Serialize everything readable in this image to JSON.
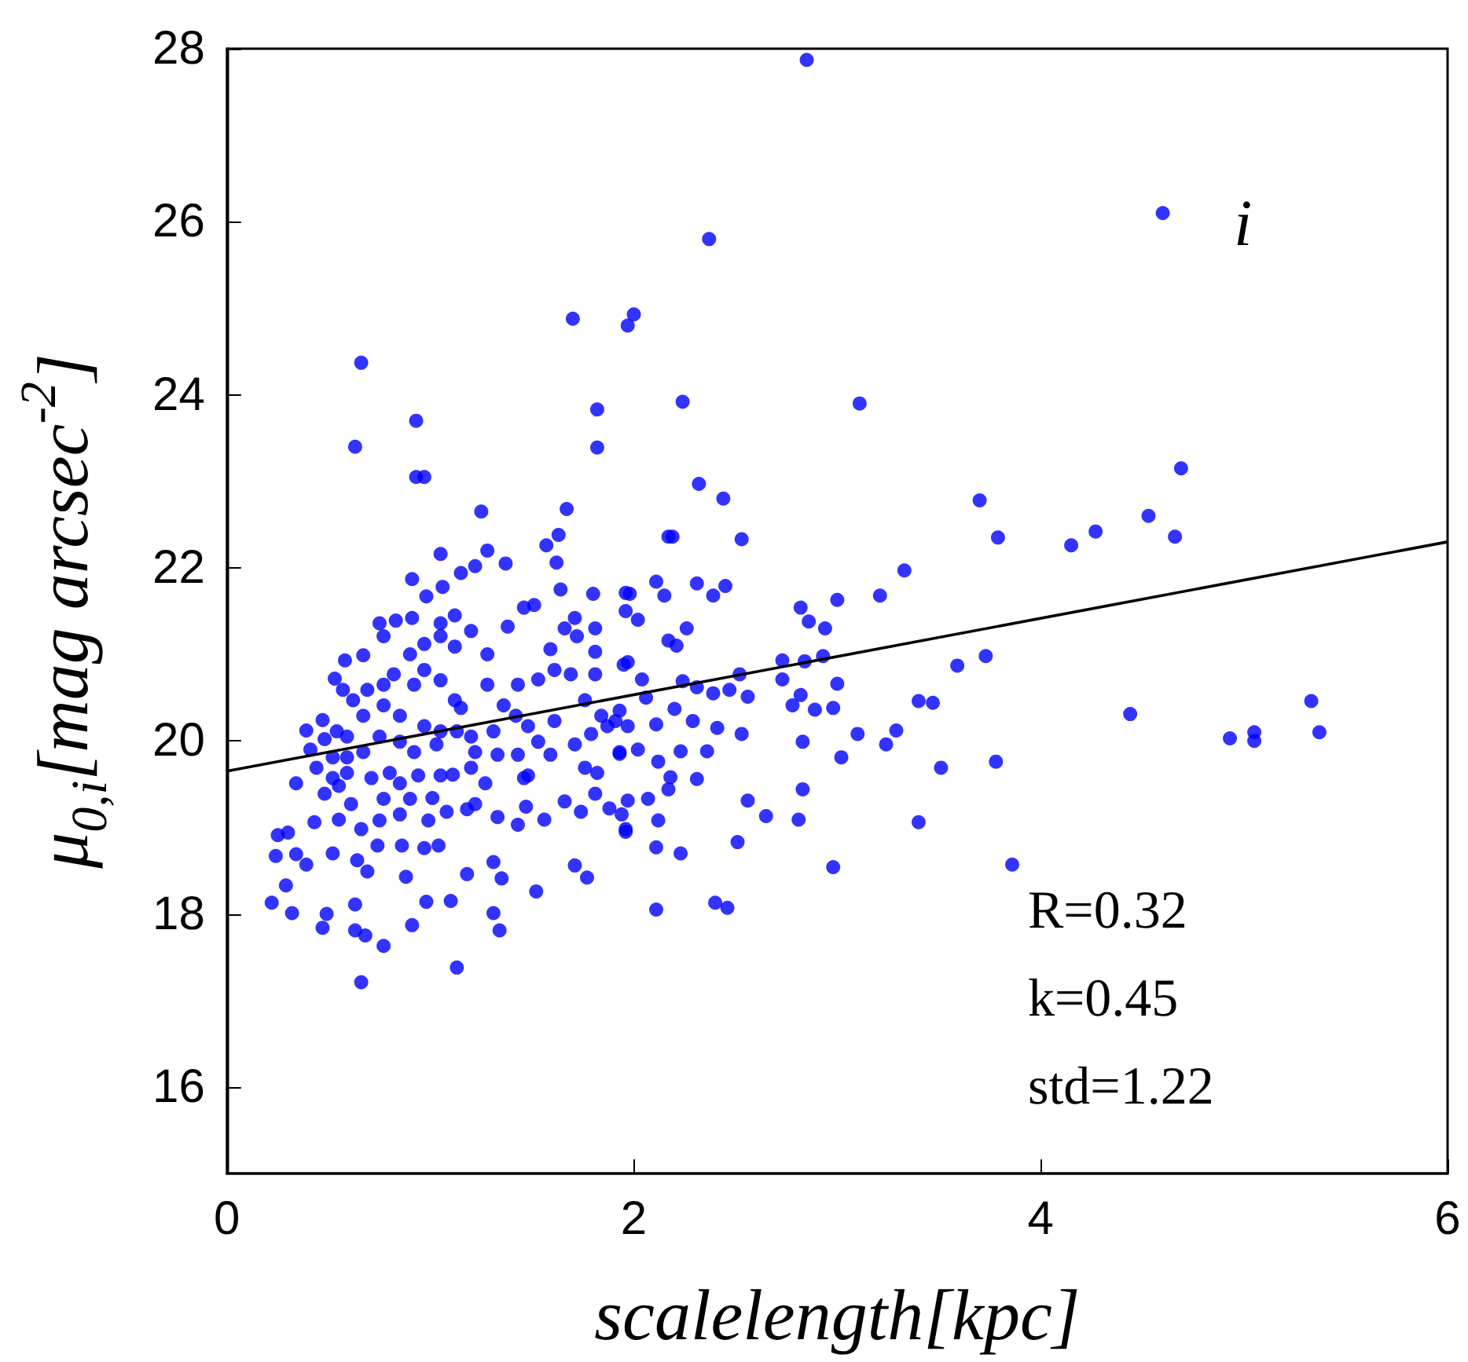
{
  "chart_data": {
    "type": "scatter",
    "xlabel": "scalelength[kpc]",
    "ylabel": "μ$_{0,i}$[mag arcsec$^{-2}$]",
    "xlim": [
      0,
      6
    ],
    "xticks": [
      0,
      2,
      4,
      6
    ],
    "ylim": [
      15,
      28
    ],
    "yticks": [
      16,
      18,
      20,
      22,
      24,
      26,
      28
    ],
    "marker": "circle",
    "annotations": [
      "i",
      "R=0.32",
      "k=0.45",
      "std=1.22"
    ],
    "series": [
      {
        "color": "#0000ff",
        "x": [
          2.85,
          4.6,
          2.37,
          1.97,
          2.0,
          1.7,
          0.66,
          0.63,
          0.93,
          0.93,
          0.97,
          1.82,
          1.82,
          2.24,
          3.11,
          2.32,
          2.44,
          1.25,
          1.67,
          3.7,
          3.79,
          4.15,
          4.27,
          4.53,
          4.66,
          4.69,
          3.33,
          3.21,
          3.0,
          2.82,
          2.86,
          2.94,
          3.73,
          3.59,
          3.4,
          3.47,
          4.44,
          4.93,
          5.05,
          5.05,
          5.33,
          5.37,
          3.29,
          3.24,
          3.51,
          3.78,
          3.1,
          3.02,
          2.83,
          2.81,
          2.65,
          2.56,
          3.4,
          2.98,
          3.86,
          2.51,
          2.4,
          2.46,
          2.11,
          2.23,
          2.11,
          2.73,
          2.84,
          2.93,
          3.0,
          2.82,
          2.78,
          2.89,
          2.98,
          2.73,
          2.83,
          2.53,
          2.17,
          2.19,
          1.05,
          0.91,
          0.98,
          1.06,
          1.15,
          1.22,
          1.28,
          1.37,
          1.57,
          1.63,
          1.62,
          1.64,
          1.8,
          1.96,
          0.75,
          0.83,
          0.91,
          0.77,
          0.67,
          0.58,
          0.53,
          0.39,
          0.47,
          0.41,
          0.34,
          0.25,
          0.24,
          0.22,
          0.29,
          0.32,
          0.47,
          0.49,
          0.63,
          0.63,
          0.68,
          0.77,
          0.66,
          0.91,
          0.98,
          1.1,
          1.13,
          1.18,
          1.31,
          1.35,
          1.31,
          1.34,
          1.52,
          1.71,
          1.77,
          0.39,
          0.34,
          0.3,
          0.43,
          0.52,
          0.64,
          0.69,
          0.74,
          0.86,
          0.88,
          0.97,
          1.04,
          0.99,
          1.08,
          1.01,
          1.18,
          1.22,
          1.33,
          1.43,
          1.47,
          1.56,
          1.66,
          1.74,
          1.81,
          1.88,
          1.96,
          1.94,
          0.55,
          0.66,
          0.75,
          0.61,
          0.85,
          0.77,
          0.9,
          0.94,
          1.05,
          1.11,
          1.2,
          1.27,
          1.22,
          1.33,
          1.43,
          1.46,
          1.48,
          1.59,
          1.53,
          1.71,
          1.76,
          1.82,
          1.93,
          1.79,
          1.87,
          1.97,
          1.61,
          1.48,
          1.42,
          1.31,
          1.2,
          1.13,
          1.03,
          0.92,
          0.85,
          0.75,
          0.67,
          0.59,
          0.52,
          0.44,
          0.48,
          0.55,
          0.71,
          0.8,
          0.85,
          1.15,
          1.28,
          1.36,
          1.43,
          1.53,
          1.61,
          1.69,
          1.76,
          1.84,
          1.93,
          1.81,
          1.95,
          1.59,
          1.66,
          1.81,
          1.71,
          1.81,
          1.72,
          1.51,
          1.46,
          1.38,
          1.2,
          1.12,
          1.05,
          0.97,
          0.9,
          0.97,
          1.05,
          1.12,
          0.92,
          0.82,
          0.77,
          0.69,
          0.62,
          0.57,
          0.67,
          0.77,
          0.85,
          0.97,
          1.05,
          0.54,
          0.48,
          0.59,
          0.52,
          0.59,
          1.28,
          1.12,
          1.05,
          1.98,
          2.11,
          2.15,
          2.31,
          2.39,
          2.45,
          1.96,
          2.02,
          2.17,
          2.26,
          2.21,
          1.97,
          2.04,
          2.24,
          2.31,
          2.39,
          2.47,
          2.52,
          2.56,
          2.06,
          2.2,
          1.91,
          2.11,
          2.29,
          2.41,
          2.53,
          1.93,
          2.02,
          2.12,
          2.23,
          2.36,
          2.18,
          2.31,
          2.17,
          1.97,
          2.07,
          2.12,
          1.96
        ],
        "values": [
          27.87,
          26.1,
          25.8,
          24.8,
          24.93,
          24.88,
          24.37,
          23.4,
          23.7,
          23.05,
          23.05,
          23.83,
          23.39,
          23.92,
          23.9,
          22.97,
          22.8,
          22.65,
          22.68,
          22.78,
          22.35,
          22.26,
          22.42,
          22.6,
          22.36,
          23.15,
          21.97,
          21.68,
          21.63,
          21.54,
          21.38,
          21.3,
          20.98,
          20.87,
          20.46,
          20.44,
          20.31,
          20.03,
          20.1,
          20.0,
          20.46,
          20.1,
          20.12,
          19.96,
          19.69,
          19.76,
          20.08,
          19.81,
          19.44,
          19.09,
          19.13,
          19.31,
          19.06,
          18.54,
          18.57,
          18.83,
          18.13,
          18.07,
          18.05,
          18.7,
          18.77,
          20.93,
          20.92,
          20.98,
          20.66,
          20.53,
          20.41,
          20.36,
          20.38,
          20.71,
          19.99,
          22.33,
          22.36,
          22.36,
          22.16,
          21.87,
          21.67,
          21.78,
          21.94,
          22.02,
          22.2,
          22.05,
          22.26,
          22.38,
          22.06,
          21.75,
          21.7,
          21.71,
          21.36,
          21.39,
          21.42,
          21.21,
          20.99,
          20.93,
          20.72,
          20.12,
          20.24,
          19.9,
          19.51,
          18.91,
          18.67,
          18.13,
          18.33,
          18.01,
          17.84,
          18.0,
          18.11,
          17.81,
          17.75,
          17.63,
          17.21,
          17.87,
          18.14,
          18.15,
          17.38,
          18.46,
          18.6,
          18.41,
          18.01,
          17.81,
          18.26,
          18.56,
          18.42,
          18.57,
          18.69,
          18.94,
          19.06,
          18.7,
          18.62,
          18.49,
          18.79,
          18.79,
          18.43,
          18.76,
          18.79,
          19.08,
          19.18,
          19.34,
          19.21,
          19.27,
          19.12,
          19.03,
          19.24,
          19.09,
          19.3,
          19.18,
          19.39,
          19.22,
          18.98,
          19.15,
          19.09,
          18.98,
          19.08,
          19.27,
          19.15,
          19.33,
          19.33,
          19.6,
          19.6,
          19.61,
          19.69,
          19.51,
          19.87,
          19.84,
          19.84,
          19.57,
          19.6,
          19.84,
          19.99,
          19.96,
          19.69,
          19.63,
          19.87,
          20.08,
          20.17,
          20.17,
          20.23,
          20.17,
          20.29,
          20.11,
          20.05,
          20.11,
          19.96,
          19.87,
          19.99,
          20.05,
          19.87,
          19.63,
          19.57,
          19.69,
          19.39,
          19.48,
          19.57,
          19.63,
          19.51,
          20.38,
          20.65,
          20.41,
          20.65,
          20.71,
          20.82,
          20.77,
          20.47,
          20.29,
          20.35,
          20.77,
          20.88,
          21.06,
          21.3,
          21.03,
          21.42,
          21.3,
          21.21,
          21.57,
          21.54,
          21.32,
          21.27,
          21.09,
          21.21,
          21.12,
          21.0,
          20.82,
          20.7,
          20.47,
          20.65,
          20.77,
          20.65,
          20.59,
          20.47,
          20.59,
          20.29,
          20.41,
          20.29,
          20.17,
          20.11,
          20.11,
          20.02,
          20.05,
          19.81,
          19.81,
          21.0,
          21.45,
          21.36,
          21.7,
          21.84,
          21.68,
          21.82,
          21.68,
          21.79,
          21.5,
          21.4,
          21.16,
          21.3,
          21.1,
          20.91,
          20.71,
          20.69,
          20.62,
          20.55,
          20.59,
          20.77,
          20.51,
          20.5,
          20.37,
          20.23,
          20.19,
          20.23,
          20.15,
          20.08,
          19.85,
          19.9,
          19.76,
          19.88,
          19.88,
          19.58,
          19.56,
          19.44,
          19.31,
          19.33,
          19.08,
          18.95
        ]
      },
      {
        "type": "line",
        "color": "#000000",
        "marker": "none",
        "x": [
          0,
          6
        ],
        "values": [
          19.65,
          22.3
        ]
      }
    ]
  }
}
